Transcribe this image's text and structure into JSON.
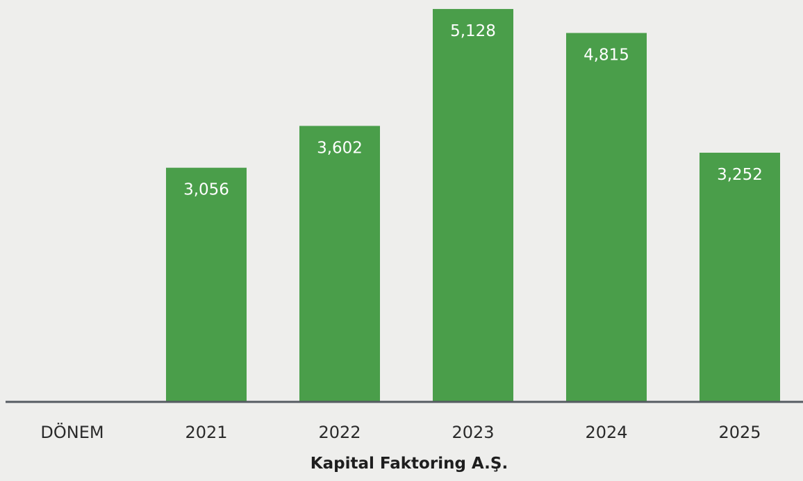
{
  "chart_data": {
    "type": "bar",
    "title": "Kapital Faktoring A.Ş.",
    "category_axis_label": "DÖNEM",
    "categories": [
      "2021",
      "2022",
      "2023",
      "2024",
      "2025"
    ],
    "values": [
      3056,
      3602,
      5128,
      4815,
      3252
    ],
    "value_labels": [
      "3,056",
      "3,602",
      "5,128",
      "4,815",
      "3,252"
    ],
    "ylim": [
      0,
      5200
    ],
    "grid": false,
    "legend": "none",
    "colors": {
      "bar": "#4a9e4a",
      "axis": "#555b62",
      "background": "#eeeeec"
    }
  }
}
